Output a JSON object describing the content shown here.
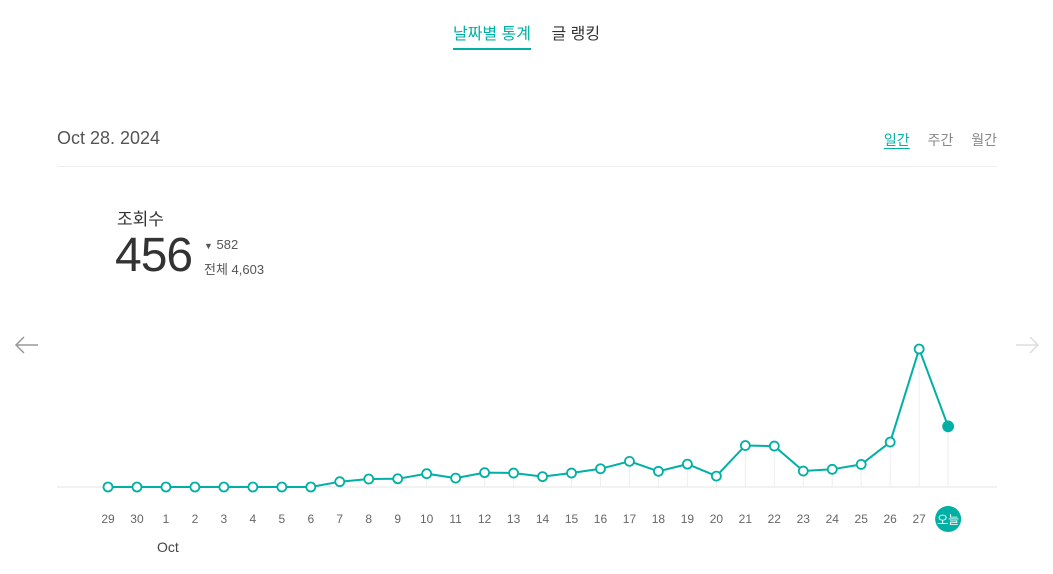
{
  "tabs": [
    {
      "label": "날짜별 통계",
      "active": true
    },
    {
      "label": "글 랭킹",
      "active": false
    }
  ],
  "date_label": "Oct 28. 2024",
  "period_tabs": [
    {
      "label": "일간",
      "active": true
    },
    {
      "label": "주간",
      "active": false
    },
    {
      "label": "월간",
      "active": false
    }
  ],
  "metric": {
    "label": "조회수",
    "value": "456",
    "diff": "582",
    "total": "전체 4,603"
  },
  "colors": {
    "accent": "#00b0a4",
    "grid": "#e5e5e5",
    "tick": "#666666"
  },
  "chart_data": {
    "type": "line",
    "x": [
      "29",
      "30",
      "1",
      "2",
      "3",
      "4",
      "5",
      "6",
      "7",
      "8",
      "9",
      "10",
      "11",
      "12",
      "13",
      "14",
      "15",
      "16",
      "17",
      "18",
      "19",
      "20",
      "21",
      "22",
      "23",
      "24",
      "25",
      "26",
      "27",
      "오늘"
    ],
    "sublabels": [
      {
        "index": 2,
        "text": "Oct"
      }
    ],
    "values": [
      0,
      0,
      0,
      0,
      0,
      0,
      0,
      0,
      40,
      60,
      62,
      100,
      67,
      108,
      105,
      78,
      105,
      137,
      193,
      118,
      172,
      82,
      312,
      308,
      120,
      133,
      170,
      338,
      1038,
      456
    ],
    "ylim": [
      0,
      1100
    ],
    "highlight_index": 29,
    "grid": true
  }
}
